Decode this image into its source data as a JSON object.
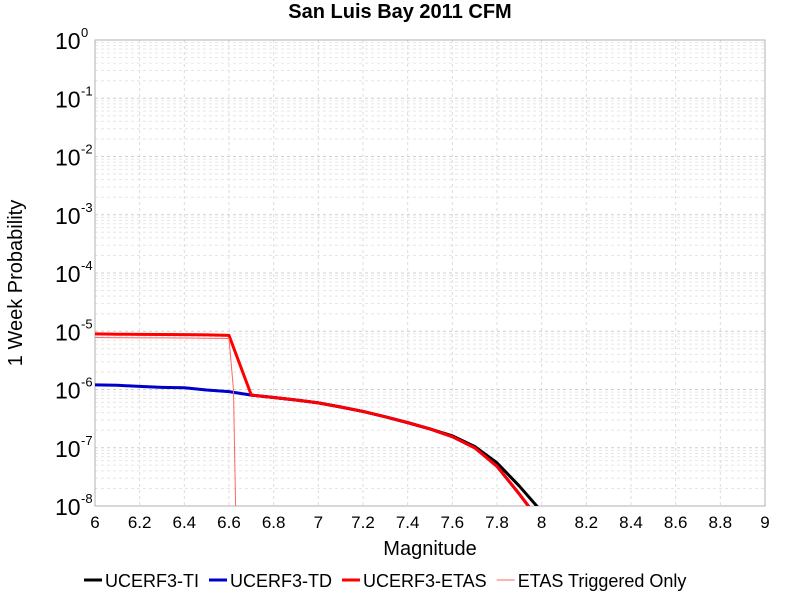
{
  "chart_data": {
    "type": "line",
    "title": "San Luis Bay 2011 CFM",
    "xlabel": "Magnitude",
    "ylabel": "1 Week Probability",
    "xlim": [
      6,
      9
    ],
    "ylim": [
      1e-08,
      1
    ],
    "y_scale": "log",
    "grid": true,
    "legend_position": "bottom",
    "x_ticks": [
      "6",
      "6.2",
      "6.4",
      "6.6",
      "6.8",
      "7",
      "7.2",
      "7.4",
      "7.6",
      "7.8",
      "8",
      "8.2",
      "8.4",
      "8.6",
      "8.8",
      "9"
    ],
    "y_ticks": [
      {
        "base": "10",
        "exp": "0"
      },
      {
        "base": "10",
        "exp": "-1"
      },
      {
        "base": "10",
        "exp": "-2"
      },
      {
        "base": "10",
        "exp": "-3"
      },
      {
        "base": "10",
        "exp": "-4"
      },
      {
        "base": "10",
        "exp": "-5"
      },
      {
        "base": "10",
        "exp": "-6"
      },
      {
        "base": "10",
        "exp": "-7"
      },
      {
        "base": "10",
        "exp": "-8"
      }
    ],
    "series": [
      {
        "name": "UCERF3-TI",
        "color": "#000000",
        "x": [
          6.7,
          6.8,
          6.9,
          7.0,
          7.1,
          7.2,
          7.3,
          7.4,
          7.5,
          7.6,
          7.7,
          7.8,
          7.9,
          8.0
        ],
        "y": [
          8e-07,
          7.3e-07,
          6.6e-07,
          5.9e-07,
          5e-07,
          4.2e-07,
          3.4e-07,
          2.7e-07,
          2.1e-07,
          1.6e-07,
          1.05e-07,
          5.5e-08,
          2.2e-08,
          8e-09
        ]
      },
      {
        "name": "UCERF3-TD",
        "color": "#0000cc",
        "x": [
          6.0,
          6.1,
          6.2,
          6.3,
          6.4,
          6.5,
          6.6,
          6.7,
          6.8,
          6.9,
          7.0,
          7.1,
          7.2,
          7.3,
          7.4,
          7.5,
          7.6,
          7.7,
          7.8,
          7.9,
          7.96
        ],
        "y": [
          1.2e-06,
          1.18e-06,
          1.13e-06,
          1.09e-06,
          1.07e-06,
          9.8e-07,
          9.2e-07,
          8e-07,
          7.3e-07,
          6.6e-07,
          5.9e-07,
          5e-07,
          4.2e-07,
          3.4e-07,
          2.7e-07,
          2.1e-07,
          1.55e-07,
          1e-07,
          4.8e-08,
          1.6e-08,
          8e-09
        ]
      },
      {
        "name": "UCERF3-ETAS",
        "color": "#ff0000",
        "x": [
          6.0,
          6.1,
          6.2,
          6.3,
          6.4,
          6.5,
          6.6,
          6.7,
          6.8,
          6.9,
          7.0,
          7.1,
          7.2,
          7.3,
          7.4,
          7.5,
          7.6,
          7.7,
          7.8,
          7.9,
          7.96
        ],
        "y": [
          9e-06,
          8.9e-06,
          8.85e-06,
          8.8e-06,
          8.75e-06,
          8.65e-06,
          8.5e-06,
          8e-07,
          7.3e-07,
          6.6e-07,
          5.9e-07,
          5e-07,
          4.2e-07,
          3.4e-07,
          2.7e-07,
          2.1e-07,
          1.55e-07,
          1e-07,
          4.8e-08,
          1.6e-08,
          8e-09
        ]
      },
      {
        "name": "ETAS Triggered Only",
        "color": "#ff6666",
        "x": [
          6.0,
          6.1,
          6.2,
          6.3,
          6.4,
          6.5,
          6.6,
          6.62,
          6.63
        ],
        "y": [
          7.8e-06,
          7.75e-06,
          7.7e-06,
          7.7e-06,
          7.65e-06,
          7.6e-06,
          7.5e-06,
          1e-06,
          8e-09
        ]
      }
    ]
  }
}
